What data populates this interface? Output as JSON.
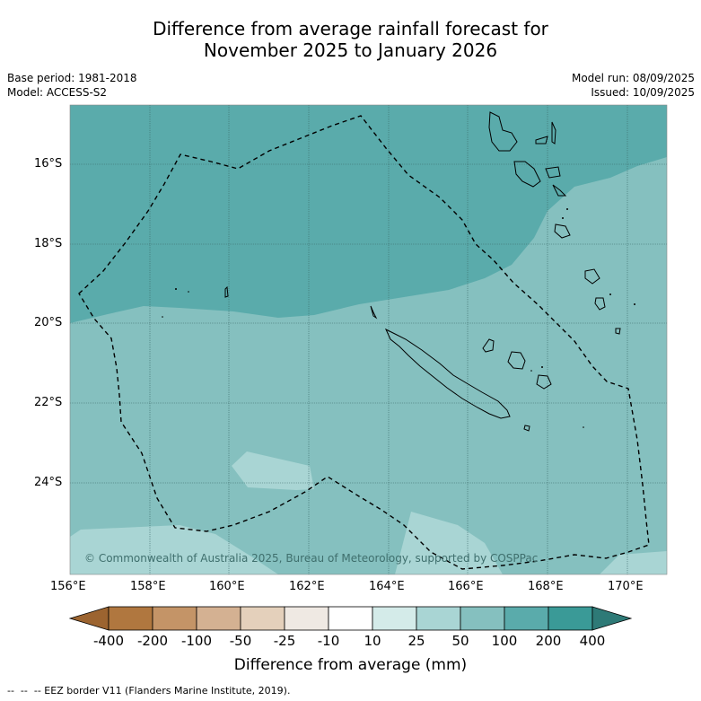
{
  "title": {
    "line1": "Difference from average rainfall forecast for",
    "line2": "November 2025 to January 2026"
  },
  "meta": {
    "base_period": "Base period: 1981-2018",
    "model": "Model: ACCESS-S2",
    "model_run": "Model run: 08/09/2025",
    "issued": "Issued: 10/09/2025"
  },
  "map": {
    "lon_ticks": [
      "156°E",
      "158°E",
      "160°E",
      "162°E",
      "164°E",
      "166°E",
      "168°E",
      "170°E"
    ],
    "lat_ticks": [
      "16°S",
      "18°S",
      "20°S",
      "22°S",
      "24°S"
    ],
    "copyright": "© Commonwealth of Australia 2025, Bureau of Meteorology, supported by COSPPac",
    "colors": {
      "band_100_200": "#5aabab",
      "band_50_100": "#85c0bf",
      "band_25_50": "#a9d5d4"
    }
  },
  "colorbar": {
    "labels": [
      "-400",
      "-200",
      "-100",
      "-50",
      "-25",
      "-10",
      "10",
      "25",
      "50",
      "100",
      "200",
      "400"
    ],
    "colors": [
      "#9c6430",
      "#b0773f",
      "#c49467",
      "#d4b192",
      "#e4d0bb",
      "#efe9e3",
      "#ffffff",
      "#d4ebe9",
      "#a9d5d4",
      "#85c0bf",
      "#5aabab",
      "#3a9a97",
      "#2e7a77"
    ],
    "title": "Difference from average (mm)"
  },
  "footer": "--  --  -- EEZ border V11 (Flanders Marine Institute, 2019)."
}
